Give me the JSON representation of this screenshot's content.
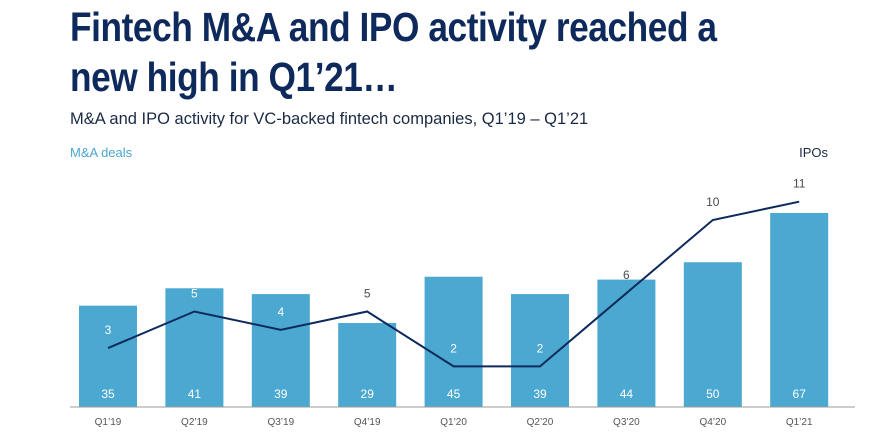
{
  "header": {
    "title": "Fintech M&A and IPO activity reached a new high in Q1’21…",
    "subtitle": "M&A and IPO activity for VC-backed fintech companies, Q1’19 – Q1’21",
    "left_axis_label": "M&A deals",
    "right_axis_label": "IPOs"
  },
  "colors": {
    "bar": "#4ba9d1",
    "line": "#0e2a5c",
    "title": "#0e2a5c"
  },
  "chart_data": {
    "type": "bar",
    "title": "Fintech M&A and IPO activity reached a new high in Q1’21…",
    "subtitle": "M&A and IPO activity for VC-backed fintech companies, Q1’19 – Q1’21",
    "categories": [
      "Q1'19",
      "Q2'19",
      "Q3'19",
      "Q4'19",
      "Q1'20",
      "Q2'20",
      "Q3'20",
      "Q4'20",
      "Q1'21"
    ],
    "series": [
      {
        "name": "M&A deals",
        "type": "bar",
        "axis": "left",
        "values": [
          35,
          41,
          39,
          29,
          45,
          39,
          44,
          50,
          67
        ]
      },
      {
        "name": "IPOs",
        "type": "line",
        "axis": "right",
        "values": [
          3,
          5,
          4,
          5,
          2,
          2,
          6,
          10,
          11
        ]
      }
    ],
    "ylim": [
      0,
      70
    ],
    "ylim_right": [
      0,
      12
    ],
    "grid": false,
    "legend": "axis labels top-left and top-right"
  }
}
